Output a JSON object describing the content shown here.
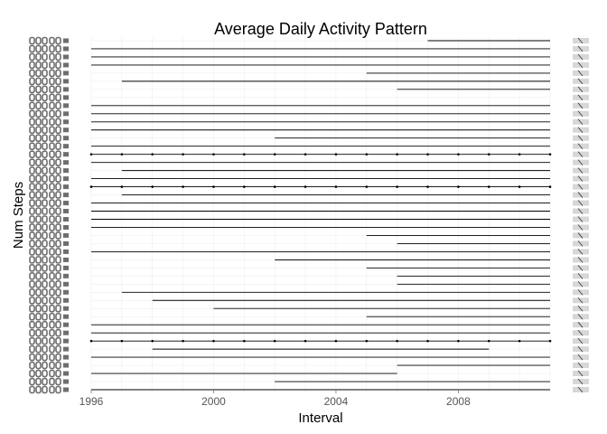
{
  "chart_data": {
    "type": "line",
    "title": "Average Daily Activity Pattern",
    "xlabel": "Interval",
    "ylabel": "Num Steps",
    "xlim": [
      1996,
      2011
    ],
    "x_ticks": [
      1996,
      2000,
      2004,
      2008
    ],
    "grid": true,
    "legend": "none",
    "colors": {
      "line": "#000000",
      "grid": "#ebebeb",
      "tick_glyph": "#6e6e6e",
      "right_marks": "#bdbdbd"
    },
    "series": [
      {
        "start": 2007,
        "end": 2011
      },
      {
        "start": 1996,
        "end": 2011
      },
      {
        "start": 1996,
        "end": 2011
      },
      {
        "start": 1996,
        "end": 2011
      },
      {
        "start": 2005,
        "end": 2011
      },
      {
        "start": 1997,
        "end": 2011
      },
      {
        "start": 2006,
        "end": 2011
      },
      {
        "start": null,
        "end": null
      },
      {
        "start": 1996,
        "end": 2011
      },
      {
        "start": 1996,
        "end": 2011
      },
      {
        "start": 1996,
        "end": 2011
      },
      {
        "start": 1996,
        "end": 2011
      },
      {
        "start": 2002,
        "end": 2011
      },
      {
        "start": 1996,
        "end": 2011
      },
      {
        "start": 1996,
        "end": 2011,
        "markers": true
      },
      {
        "start": 1996,
        "end": 2011
      },
      {
        "start": 1997,
        "end": 2011
      },
      {
        "start": 1996,
        "end": 2011
      },
      {
        "start": 1996,
        "end": 2011,
        "markers": true
      },
      {
        "start": 1997,
        "end": 2011
      },
      {
        "start": 1996,
        "end": 2011
      },
      {
        "start": 1996,
        "end": 2011
      },
      {
        "start": 1996,
        "end": 2011
      },
      {
        "start": 1996,
        "end": 2011
      },
      {
        "start": 2005,
        "end": 2011
      },
      {
        "start": 2006,
        "end": 2011
      },
      {
        "start": 1996,
        "end": 2011
      },
      {
        "start": 2002,
        "end": 2011
      },
      {
        "start": 2005,
        "end": 2011
      },
      {
        "start": 2006,
        "end": 2011
      },
      {
        "start": 2006,
        "end": 2011
      },
      {
        "start": 1997,
        "end": 2011
      },
      {
        "start": 1998,
        "end": 2011
      },
      {
        "start": 2000,
        "end": 2011
      },
      {
        "start": 2005,
        "end": 2011
      },
      {
        "start": 1996,
        "end": 2011
      },
      {
        "start": 1996,
        "end": 2011
      },
      {
        "start": 1996,
        "end": 2011,
        "markers": true
      },
      {
        "start": 1998,
        "end": 2009
      },
      {
        "start": 1996,
        "end": 2011
      },
      {
        "start": 2006,
        "end": 2011
      },
      {
        "start": 1996,
        "end": 2006
      },
      {
        "start": 2002,
        "end": 2011
      },
      {
        "start": 1996,
        "end": 2011
      }
    ]
  }
}
